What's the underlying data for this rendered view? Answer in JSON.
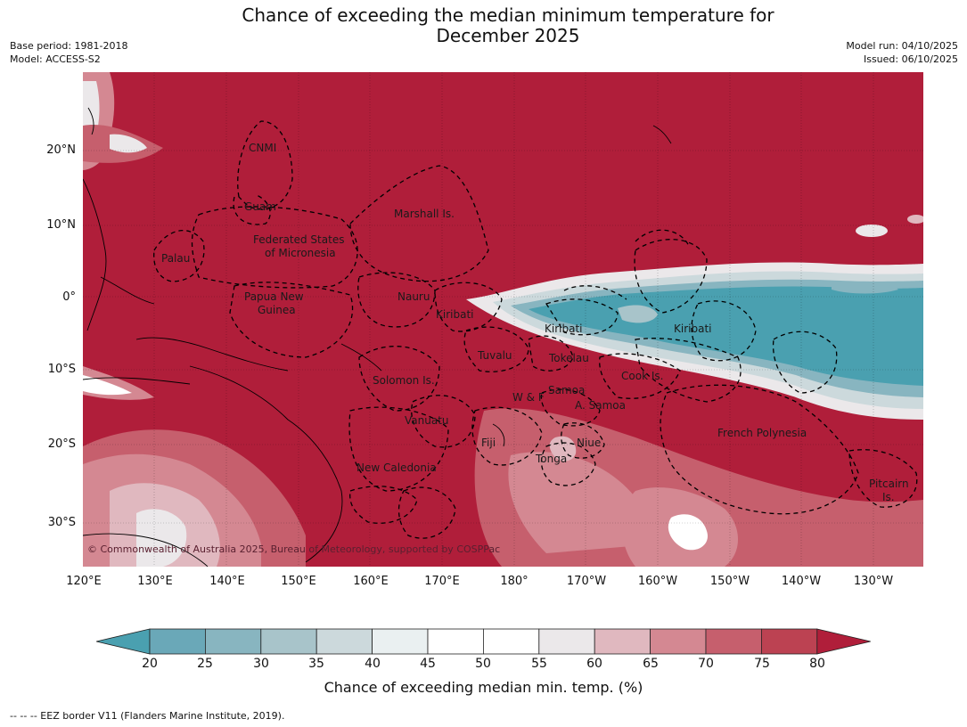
{
  "header": {
    "title_line1": "Chance of exceeding the median minimum temperature for",
    "title_line2": "December 2025",
    "base_period": "Base period: 1981-2018",
    "model": "Model: ACCESS-S2",
    "model_run": "Model run: 04/10/2025",
    "issued": "Issued: 06/10/2025"
  },
  "map": {
    "lat_labels": [
      "20°N",
      "10°N",
      "0°",
      "10°S",
      "20°S",
      "30°S"
    ],
    "lon_labels": [
      "120°E",
      "130°E",
      "140°E",
      "150°E",
      "160°E",
      "170°E",
      "180°",
      "170°W",
      "160°W",
      "150°W",
      "140°W",
      "130°W"
    ],
    "regions": [
      "CNMI",
      "Guam",
      "Marshall Is.",
      "Federated States",
      "of Micronesia",
      "Palau",
      "Papua New",
      "Guinea",
      "Nauru",
      "Kiribati",
      "Kiribati",
      "Kiribati",
      "Tuvalu",
      "Tokelau",
      "Cook Is.",
      "Solomon Is.",
      "W & F",
      "Samoa",
      "A. Samoa",
      "Vanuatu",
      "Fiji",
      "Niue",
      "French Polynesia",
      "Tonga",
      "New Caledonia",
      "Pitcairn",
      "Is."
    ],
    "credit": "© Commonwealth of Australia 2025, Bureau of Meteorology, supported by COSPPac",
    "colors": {
      "high": "#b01e3a",
      "low": "#4aa0b0",
      "land": "#000000"
    }
  },
  "colorbar": {
    "ticks": [
      "20",
      "25",
      "30",
      "35",
      "40",
      "45",
      "50",
      "55",
      "60",
      "65",
      "70",
      "75",
      "80"
    ],
    "colors": [
      "#4aa0b0",
      "#6aa8b8",
      "#88b5c0",
      "#a8c4ca",
      "#ccd9dc",
      "#eaf0f1",
      "#ffffff",
      "#ffffff",
      "#ebe8ea",
      "#e0b8bf",
      "#d48892",
      "#c65f6d",
      "#bc4252",
      "#b01e3a"
    ],
    "label": "Chance of exceeding median min. temp. (%)"
  },
  "footnote": "--  --  -- EEZ border V11 (Flanders Marine Institute, 2019)."
}
